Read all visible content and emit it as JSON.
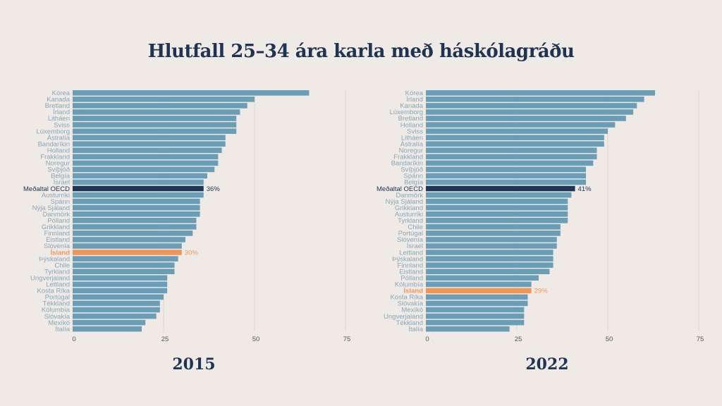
{
  "title": "Hlutfall 25–34 ára karla með háskólagráðu",
  "colors": {
    "bar": "#6a9db6",
    "oecd": "#1f3556",
    "iceland": "#f0955a",
    "label": "#86a7bb",
    "background": "#efeae5",
    "title": "#1f3352"
  },
  "chart_data": [
    {
      "type": "bar",
      "orientation": "horizontal",
      "title": "2015",
      "unit": "%",
      "xlim": [
        0,
        75
      ],
      "xticks": [
        0,
        25,
        50,
        75
      ],
      "categories": [
        "Kórea",
        "Kanada",
        "Bretland",
        "Írland",
        "Litháen",
        "Sviss",
        "Lúxemborg",
        "Ástralía",
        "Bandaríkin",
        "Holland",
        "Frakkland",
        "Noregur",
        "Svíþjóð",
        "Belgía",
        "Ísrael",
        "Meðaltal OECD",
        "Austurríki",
        "Spánn",
        "Nýja Sjáland",
        "Danmörk",
        "Pólland",
        "Grikkland",
        "Finnland",
        "Eistland",
        "Slóvenía",
        "Ísland",
        "Þýskaland",
        "Chile",
        "Tyrkland",
        "Ungverjaland",
        "Lettland",
        "Kosta Ríka",
        "Portúgal",
        "Tékkland",
        "Kólumbía",
        "Slóvakía",
        "Mexíkó",
        "Ítalía"
      ],
      "values": [
        65,
        50,
        48,
        46,
        45,
        45,
        45,
        42,
        42,
        41,
        40,
        40,
        39,
        37,
        36,
        36,
        36,
        35,
        35,
        35,
        34,
        34,
        33,
        31,
        30,
        30,
        29,
        28,
        28,
        26,
        26,
        26,
        25,
        24,
        24,
        23,
        20,
        19
      ],
      "highlights": {
        "Meðaltal OECD": "36%",
        "Ísland": "30%"
      }
    },
    {
      "type": "bar",
      "orientation": "horizontal",
      "title": "2022",
      "unit": "%",
      "xlim": [
        0,
        75
      ],
      "xticks": [
        0,
        25,
        50,
        75
      ],
      "categories": [
        "Kórea",
        "Írland",
        "Kanada",
        "Lúxemborg",
        "Bretland",
        "Holland",
        "Sviss",
        "Litháen",
        "Ástralía",
        "Noregur",
        "Frakkland",
        "Bandaríkin",
        "Svíþjóð",
        "Spánn",
        "Belgía",
        "Meðaltal OECD",
        "Danmörk",
        "Nýja Sjáland",
        "Grikkland",
        "Austurríki",
        "Tyrkland",
        "Chile",
        "Portúgal",
        "Slóvenía",
        "Ísrael",
        "Lettland",
        "Þýskaland",
        "Finnland",
        "Eistland",
        "Pólland",
        "Kólumbía",
        "Ísland",
        "Kosta Ríka",
        "Slóvakía",
        "Mexíkó",
        "Ungverjaland",
        "Tékkland",
        "Ítalía"
      ],
      "values": [
        63,
        60,
        58,
        57,
        55,
        52,
        50,
        49,
        49,
        47,
        47,
        46,
        44,
        44,
        44,
        41,
        40,
        39,
        39,
        39,
        39,
        37,
        37,
        36,
        36,
        35,
        35,
        35,
        34,
        31,
        29,
        29,
        28,
        28,
        27,
        27,
        27,
        23
      ],
      "highlights": {
        "Meðaltal OECD": "41%",
        "Ísland": "29%"
      }
    }
  ]
}
